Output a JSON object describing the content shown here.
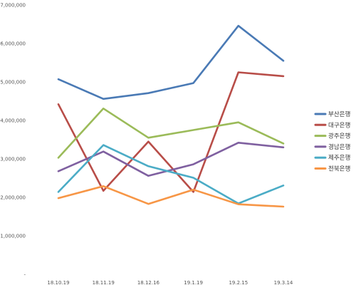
{
  "chart_data": {
    "type": "line",
    "x": [
      "18.10.19",
      "18.11.19",
      "18.12.16",
      "19.1.19",
      "19.2.15",
      "19.3.14"
    ],
    "ylim": [
      0,
      7000000
    ],
    "yticks": [
      "-",
      "1,000,000",
      "2,000,000",
      "3,000,000",
      "4,000,000",
      "5,000,000",
      "6,000,000",
      "7,000,000"
    ],
    "grid": false,
    "legend_position": "right",
    "series": [
      {
        "name": "부산은행",
        "color": "#4a7ab5",
        "values": [
          5070000,
          4560000,
          4710000,
          4970000,
          6460000,
          5550000
        ]
      },
      {
        "name": "대구은행",
        "color": "#b84d48",
        "values": [
          4420000,
          2170000,
          3450000,
          2140000,
          5250000,
          5150000
        ]
      },
      {
        "name": "광주은행",
        "color": "#9bbb59",
        "values": [
          3030000,
          4310000,
          3550000,
          3750000,
          3950000,
          3400000
        ]
      },
      {
        "name": "경남은행",
        "color": "#7f60a0",
        "values": [
          2680000,
          3190000,
          2560000,
          2860000,
          3420000,
          3300000
        ]
      },
      {
        "name": "제주은행",
        "color": "#4bacc6",
        "values": [
          2140000,
          3360000,
          2810000,
          2510000,
          1840000,
          2310000
        ]
      },
      {
        "name": "전북은행",
        "color": "#f79646",
        "values": [
          1980000,
          2290000,
          1830000,
          2200000,
          1820000,
          1760000
        ]
      }
    ]
  }
}
